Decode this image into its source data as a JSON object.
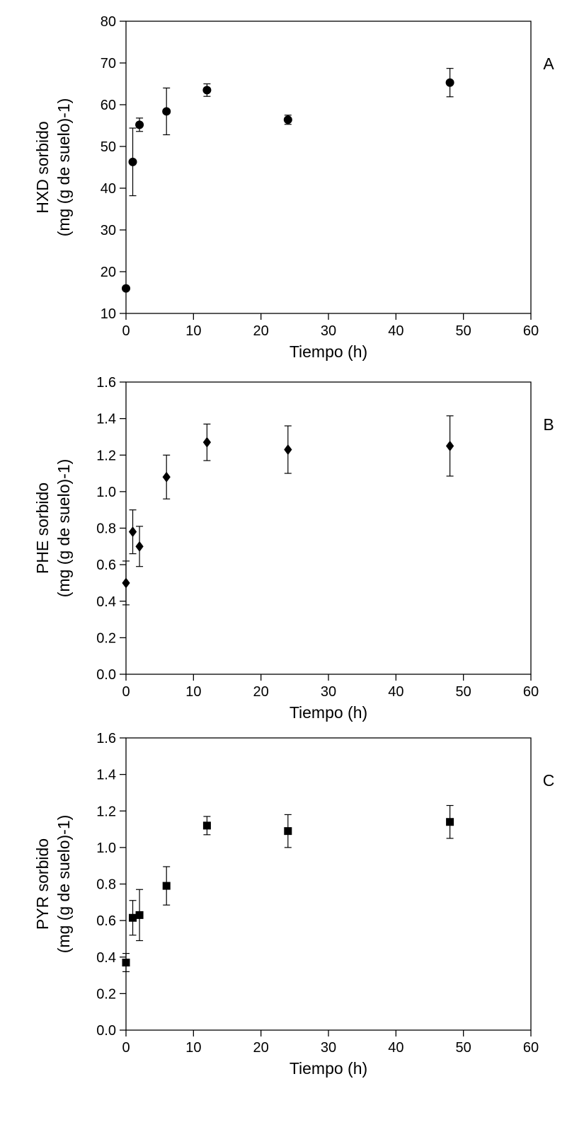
{
  "chart_data": [
    {
      "type": "scatter",
      "panel_label": "A",
      "xlabel": "Tiempo (h)",
      "ylabel_line1": "HXD  sorbido",
      "ylabel_line2": "(mg (g de suelo)-1)",
      "xlim": [
        0,
        60
      ],
      "ylim": [
        10,
        80
      ],
      "xticks": [
        0,
        10,
        20,
        30,
        40,
        50,
        60
      ],
      "xtick_labels": [
        "0",
        "10",
        "20",
        "30",
        "40",
        "50",
        "60"
      ],
      "yticks": [
        10,
        20,
        30,
        40,
        50,
        60,
        70,
        80
      ],
      "ytick_labels": [
        "10",
        "20",
        "30",
        "40",
        "50",
        "60",
        "70",
        "80"
      ],
      "marker": "circle",
      "grid": false,
      "points": [
        {
          "x": 0,
          "y": 16.0,
          "err": 0.4
        },
        {
          "x": 1,
          "y": 46.3,
          "err": 8.1
        },
        {
          "x": 2,
          "y": 55.2,
          "err": 1.6
        },
        {
          "x": 6,
          "y": 58.4,
          "err": 5.6
        },
        {
          "x": 12,
          "y": 63.5,
          "err": 1.5
        },
        {
          "x": 24,
          "y": 56.4,
          "err": 1.1
        },
        {
          "x": 48,
          "y": 65.3,
          "err": 3.4
        }
      ]
    },
    {
      "type": "scatter",
      "panel_label": "B",
      "xlabel": "Tiempo (h)",
      "ylabel_line1": "PHE  sorbido",
      "ylabel_line2": "(mg (g de suelo)-1)",
      "xlim": [
        0,
        60
      ],
      "ylim": [
        0,
        1.6
      ],
      "xticks": [
        0,
        10,
        20,
        30,
        40,
        50,
        60
      ],
      "xtick_labels": [
        "0",
        "10",
        "20",
        "30",
        "40",
        "50",
        "60"
      ],
      "yticks": [
        0,
        0.2,
        0.4,
        0.6,
        0.8,
        1.0,
        1.2,
        1.4,
        1.6
      ],
      "ytick_labels": [
        "0.0",
        "0.2",
        "0.4",
        "0.6",
        "0.8",
        "1.0",
        "1.2",
        "1.4",
        "1.6"
      ],
      "marker": "diamond",
      "grid": false,
      "points": [
        {
          "x": 0,
          "y": 0.5,
          "err": 0.12
        },
        {
          "x": 1,
          "y": 0.78,
          "err": 0.12
        },
        {
          "x": 2,
          "y": 0.7,
          "err": 0.11
        },
        {
          "x": 6,
          "y": 1.08,
          "err": 0.12
        },
        {
          "x": 12,
          "y": 1.27,
          "err": 0.1
        },
        {
          "x": 24,
          "y": 1.23,
          "err": 0.13
        },
        {
          "x": 48,
          "y": 1.25,
          "err": 0.165
        }
      ]
    },
    {
      "type": "scatter",
      "panel_label": "C",
      "xlabel": "Tiempo (h)",
      "ylabel_line1": "PYR  sorbido",
      "ylabel_line2": "(mg (g de suelo)-1)",
      "xlim": [
        0,
        60
      ],
      "ylim": [
        0,
        1.6
      ],
      "xticks": [
        0,
        10,
        20,
        30,
        40,
        50,
        60
      ],
      "xtick_labels": [
        "0",
        "10",
        "20",
        "30",
        "40",
        "50",
        "60"
      ],
      "yticks": [
        0,
        0.2,
        0.4,
        0.6,
        0.8,
        1.0,
        1.2,
        1.4,
        1.6
      ],
      "ytick_labels": [
        "0.0",
        "0.2",
        "0.4",
        "0.6",
        "0.8",
        "1.0",
        "1.2",
        "1.4",
        "1.6"
      ],
      "marker": "square",
      "grid": false,
      "points": [
        {
          "x": 0,
          "y": 0.37,
          "err": 0.05
        },
        {
          "x": 1,
          "y": 0.615,
          "err": 0.095
        },
        {
          "x": 2,
          "y": 0.63,
          "err": 0.14
        },
        {
          "x": 6,
          "y": 0.79,
          "err": 0.105
        },
        {
          "x": 12,
          "y": 1.12,
          "err": 0.05
        },
        {
          "x": 24,
          "y": 1.09,
          "err": 0.09
        },
        {
          "x": 48,
          "y": 1.14,
          "err": 0.09
        }
      ]
    }
  ]
}
